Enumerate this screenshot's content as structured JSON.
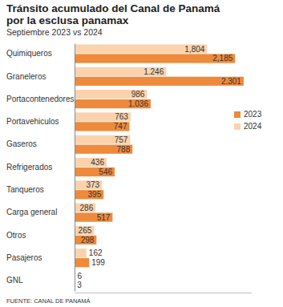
{
  "chart_data": {
    "type": "bar",
    "orientation": "horizontal",
    "title": "Tránsito acumulado del Canal de Panamá por la esclusa panamax",
    "subtitle": "Septiembre 2023 vs 2024",
    "source": "FUENTE: CANAL DE PANAMÁ",
    "categories": [
      "Quimiqueros",
      "Graneleros",
      "Portacontenedores",
      "Portavehiculos",
      "Gaseros",
      "Refrigerados",
      "Tanqueros",
      "Carga general",
      "Otros",
      "Pasajeros",
      "GNL"
    ],
    "series": [
      {
        "name": "2023",
        "color": "#ee8a3c",
        "values": [
          2185,
          2301,
          1036,
          747,
          788,
          546,
          395,
          517,
          298,
          199,
          3
        ],
        "value_labels": [
          "2,185",
          "2.301",
          "1.036",
          "747",
          "788",
          "546",
          "395",
          "517",
          "298",
          "199",
          "3"
        ]
      },
      {
        "name": "2024",
        "color": "#fad3ae",
        "values": [
          1804,
          1246,
          986,
          763,
          757,
          436,
          373,
          286,
          265,
          162,
          6
        ],
        "value_labels": [
          "1,804",
          "1.246",
          "986",
          "763",
          "757",
          "436",
          "373",
          "286",
          "265",
          "162",
          "6"
        ]
      }
    ],
    "xlim": [
      0,
      2400
    ],
    "xticks": [],
    "tick_labels": "y",
    "data_labels": true,
    "legend": "right",
    "grid": false
  }
}
